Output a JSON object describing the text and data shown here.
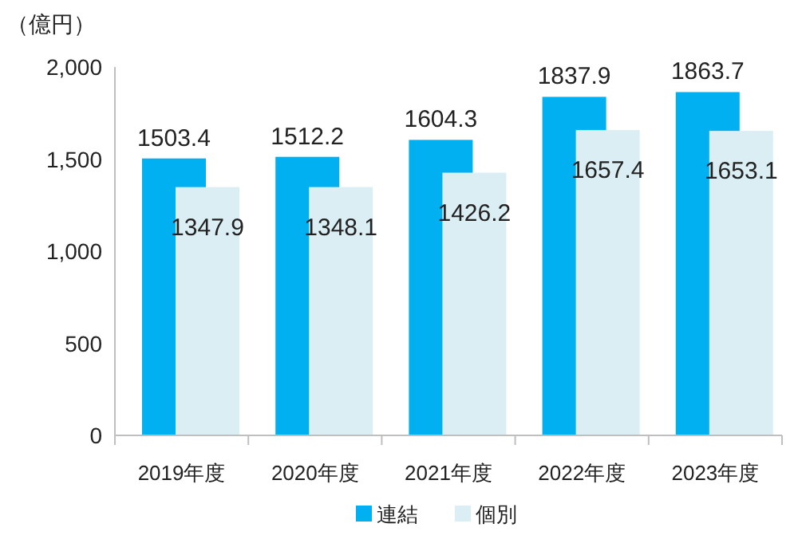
{
  "chart_data": {
    "type": "bar",
    "ylabel": "（億円）",
    "categories": [
      "2019年度",
      "2020年度",
      "2021年度",
      "2022年度",
      "2023年度"
    ],
    "series": [
      {
        "name": "連結",
        "color": "#00b0f0",
        "values": [
          1503.4,
          1512.2,
          1604.3,
          1837.9,
          1863.7
        ]
      },
      {
        "name": "個別",
        "color": "#daeef3",
        "values": [
          1347.9,
          1348.1,
          1426.2,
          1657.4,
          1653.1
        ]
      }
    ],
    "ylim": [
      0,
      2000
    ],
    "yticks": [
      0,
      {
        "value": 500,
        "label": "500"
      },
      {
        "value": 1000,
        "label": "1,000"
      },
      {
        "value": 1500,
        "label": "1,500"
      },
      {
        "value": 2000,
        "label": "2,000"
      }
    ],
    "data_labels": true,
    "legend": "bottom"
  }
}
